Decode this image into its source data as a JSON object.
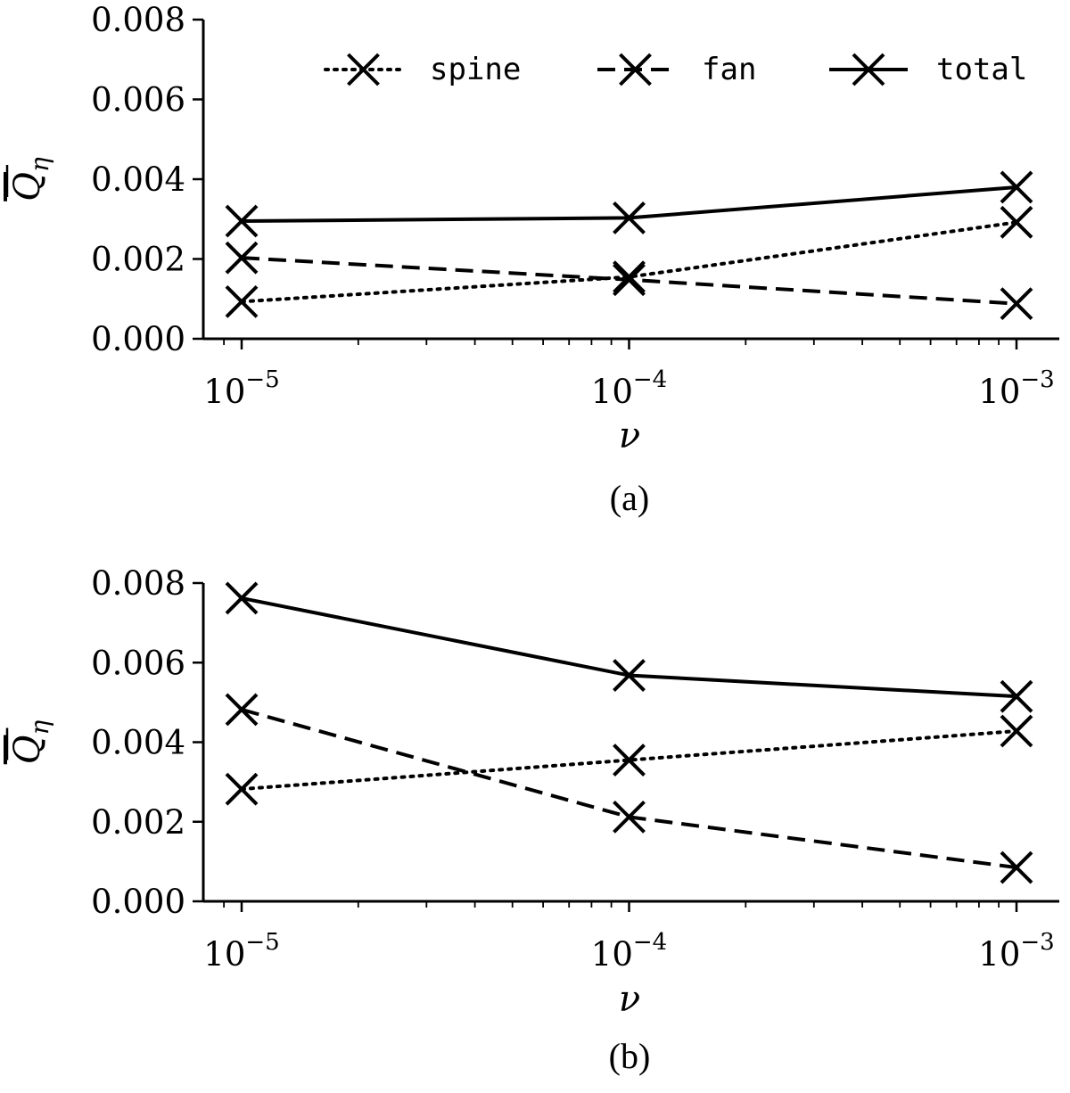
{
  "chart_data": [
    {
      "type": "line",
      "caption": "(a)",
      "xlabel": "ν",
      "ylabel": "Q",
      "ylabel_subscript": "η",
      "x_scale": "log",
      "x": [
        1e-05,
        0.0001,
        0.001
      ],
      "xticks": [
        {
          "base": "10",
          "exp": "−5"
        },
        {
          "base": "10",
          "exp": "−4"
        },
        {
          "base": "10",
          "exp": "−3"
        }
      ],
      "yticks": [
        "0.000",
        "0.002",
        "0.004",
        "0.006",
        "0.008"
      ],
      "ylim": [
        0,
        0.008
      ],
      "legend": "top",
      "series": [
        {
          "name": "spine",
          "style": "dotted",
          "values": [
            0.00093,
            0.00155,
            0.00292
          ]
        },
        {
          "name": "fan",
          "style": "dashed",
          "values": [
            0.00203,
            0.00148,
            0.00088
          ]
        },
        {
          "name": "total",
          "style": "solid",
          "values": [
            0.00295,
            0.00303,
            0.0038
          ]
        }
      ]
    },
    {
      "type": "line",
      "caption": "(b)",
      "xlabel": "ν",
      "ylabel": "Q",
      "ylabel_subscript": "η",
      "x_scale": "log",
      "x": [
        1e-05,
        0.0001,
        0.001
      ],
      "xticks": [
        {
          "base": "10",
          "exp": "−5"
        },
        {
          "base": "10",
          "exp": "−4"
        },
        {
          "base": "10",
          "exp": "−3"
        }
      ],
      "yticks": [
        "0.000",
        "0.002",
        "0.004",
        "0.006",
        "0.008"
      ],
      "ylim": [
        0,
        0.008
      ],
      "series": [
        {
          "name": "spine",
          "style": "dotted",
          "values": [
            0.00282,
            0.00355,
            0.00428
          ]
        },
        {
          "name": "fan",
          "style": "dashed",
          "values": [
            0.00482,
            0.00212,
            0.00085
          ]
        },
        {
          "name": "total",
          "style": "solid",
          "values": [
            0.00762,
            0.00568,
            0.00515
          ]
        }
      ]
    }
  ]
}
